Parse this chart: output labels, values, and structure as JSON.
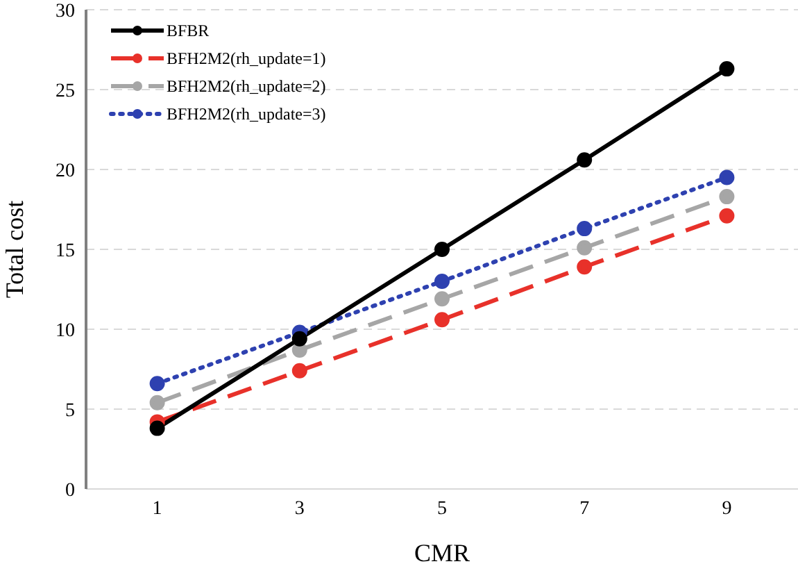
{
  "chart_data": {
    "type": "line",
    "xlabel": "CMR",
    "ylabel": "Total cost",
    "x": [
      1,
      3,
      5,
      7,
      9
    ],
    "xlim": [
      0,
      10
    ],
    "xticks": [
      1,
      3,
      5,
      7,
      9
    ],
    "ylim": [
      0,
      30
    ],
    "yticks": [
      0,
      5,
      10,
      15,
      20,
      25,
      30
    ],
    "grid": "y",
    "legend": "top left",
    "marker": "circle",
    "series": [
      {
        "name": "BFBR",
        "color": "#000000",
        "line_style": "solid",
        "values": [
          3.8,
          9.4,
          15.0,
          20.6,
          26.3
        ]
      },
      {
        "name": "BFH2M2(rh_update=1)",
        "color": "#e8312a",
        "line_style": "dashed",
        "values": [
          4.2,
          7.4,
          10.6,
          13.9,
          17.1
        ]
      },
      {
        "name": "BFH2M2(rh_update=2)",
        "color": "#a6a6a6",
        "line_style": "dashed",
        "values": [
          5.4,
          8.7,
          11.9,
          15.1,
          18.3
        ]
      },
      {
        "name": "BFH2M2(rh_update=3)",
        "color": "#2e41b0",
        "line_style": "dotted",
        "values": [
          6.6,
          9.8,
          13.0,
          16.3,
          19.5
        ]
      }
    ]
  }
}
